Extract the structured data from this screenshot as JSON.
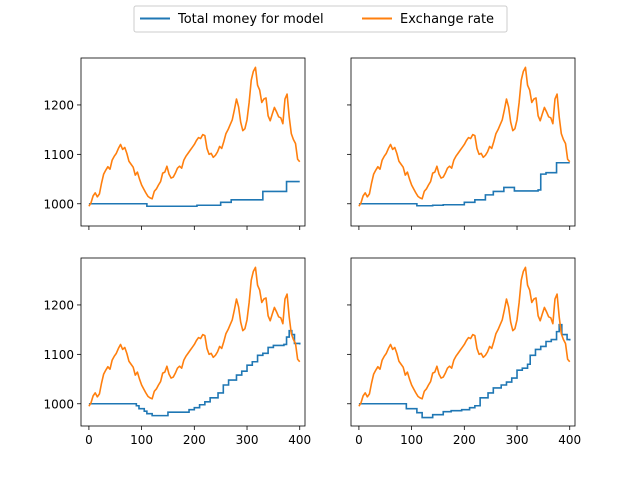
{
  "legend": {
    "placement": "top-center",
    "items": [
      {
        "label": "Total money for model",
        "color": "#1f77b4"
      },
      {
        "label": "Exchange rate",
        "color": "#ff7f0e"
      }
    ]
  },
  "colors": {
    "model": "#1f77b4",
    "rate": "#ff7f0e",
    "axis": "#000000",
    "background": "#ffffff"
  },
  "chart_data": {
    "type": "line",
    "layout": "2x2 grid, shared x and y axes",
    "xlim": [
      -15,
      410
    ],
    "ylim": [
      955,
      1295
    ],
    "x_ticks": [
      0,
      100,
      200,
      300,
      400
    ],
    "y_ticks": [
      1000,
      1100,
      1200
    ],
    "grid": false,
    "exchange_rate": {
      "name": "Exchange rate",
      "x": [
        0,
        4,
        8,
        12,
        16,
        20,
        24,
        28,
        32,
        36,
        40,
        44,
        48,
        52,
        56,
        60,
        64,
        68,
        72,
        76,
        80,
        84,
        88,
        92,
        96,
        100,
        104,
        108,
        112,
        116,
        120,
        124,
        128,
        132,
        136,
        140,
        144,
        148,
        152,
        156,
        160,
        164,
        168,
        172,
        176,
        180,
        184,
        188,
        192,
        196,
        200,
        204,
        208,
        212,
        216,
        220,
        224,
        228,
        232,
        236,
        240,
        244,
        248,
        252,
        256,
        260,
        264,
        268,
        272,
        276,
        280,
        284,
        288,
        292,
        296,
        300,
        304,
        308,
        312,
        316,
        320,
        324,
        328,
        332,
        336,
        340,
        344,
        348,
        352,
        356,
        360,
        364,
        368,
        372,
        376,
        380,
        384,
        388,
        392,
        396,
        400
      ],
      "y": [
        995,
        1002,
        1016,
        1022,
        1014,
        1020,
        1042,
        1060,
        1068,
        1075,
        1070,
        1088,
        1096,
        1102,
        1112,
        1120,
        1110,
        1114,
        1102,
        1086,
        1080,
        1074,
        1058,
        1064,
        1050,
        1038,
        1030,
        1022,
        1015,
        1012,
        1010,
        1025,
        1030,
        1038,
        1045,
        1062,
        1064,
        1076,
        1060,
        1052,
        1054,
        1062,
        1072,
        1076,
        1072,
        1088,
        1096,
        1102,
        1108,
        1114,
        1120,
        1128,
        1134,
        1132,
        1140,
        1138,
        1112,
        1100,
        1102,
        1094,
        1098,
        1105,
        1116,
        1112,
        1126,
        1142,
        1150,
        1160,
        1170,
        1190,
        1212,
        1196,
        1165,
        1148,
        1152,
        1170,
        1205,
        1250,
        1268,
        1276,
        1240,
        1230,
        1205,
        1212,
        1214,
        1178,
        1168,
        1182,
        1195,
        1186,
        1176,
        1174,
        1162,
        1212,
        1222,
        1176,
        1142,
        1130,
        1122,
        1090,
        1085
      ]
    },
    "panels": [
      {
        "position": "top-left",
        "series": [
          {
            "name": "Total money for model",
            "steps": [
              [
                0,
                1000
              ],
              [
                110,
                995
              ],
              [
                160,
                995
              ],
              [
                205,
                997
              ],
              [
                250,
                1003
              ],
              [
                270,
                1008
              ],
              [
                330,
                1025
              ],
              [
                375,
                1045
              ],
              [
                400,
                1045
              ]
            ]
          }
        ]
      },
      {
        "position": "top-right",
        "series": [
          {
            "name": "Total money for model",
            "steps": [
              [
                0,
                1000
              ],
              [
                110,
                996
              ],
              [
                140,
                997
              ],
              [
                160,
                998
              ],
              [
                200,
                1003
              ],
              [
                220,
                1008
              ],
              [
                240,
                1018
              ],
              [
                255,
                1025
              ],
              [
                275,
                1033
              ],
              [
                295,
                1026
              ],
              [
                340,
                1028
              ],
              [
                345,
                1060
              ],
              [
                355,
                1063
              ],
              [
                375,
                1083
              ],
              [
                400,
                1083
              ]
            ]
          }
        ]
      },
      {
        "position": "bottom-left",
        "series": [
          {
            "name": "Total money for model",
            "steps": [
              [
                0,
                1000
              ],
              [
                90,
                996
              ],
              [
                95,
                990
              ],
              [
                105,
                985
              ],
              [
                110,
                980
              ],
              [
                120,
                976
              ],
              [
                130,
                976
              ],
              [
                150,
                983
              ],
              [
                180,
                983
              ],
              [
                190,
                988
              ],
              [
                200,
                992
              ],
              [
                210,
                998
              ],
              [
                220,
                1004
              ],
              [
                230,
                1012
              ],
              [
                245,
                1022
              ],
              [
                255,
                1038
              ],
              [
                265,
                1048
              ],
              [
                280,
                1058
              ],
              [
                290,
                1066
              ],
              [
                300,
                1078
              ],
              [
                310,
                1085
              ],
              [
                320,
                1098
              ],
              [
                330,
                1102
              ],
              [
                340,
                1114
              ],
              [
                350,
                1118
              ],
              [
                370,
                1120
              ],
              [
                375,
                1135
              ],
              [
                380,
                1148
              ],
              [
                385,
                1140
              ],
              [
                390,
                1122
              ],
              [
                400,
                1120
              ]
            ]
          }
        ]
      },
      {
        "position": "bottom-right",
        "series": [
          {
            "name": "Total money for model",
            "steps": [
              [
                0,
                1000
              ],
              [
                85,
                1000
              ],
              [
                90,
                990
              ],
              [
                110,
                982
              ],
              [
                120,
                972
              ],
              [
                130,
                972
              ],
              [
                140,
                978
              ],
              [
                160,
                984
              ],
              [
                175,
                986
              ],
              [
                195,
                988
              ],
              [
                210,
                992
              ],
              [
                220,
                996
              ],
              [
                230,
                1012
              ],
              [
                245,
                1022
              ],
              [
                255,
                1032
              ],
              [
                270,
                1038
              ],
              [
                280,
                1044
              ],
              [
                290,
                1052
              ],
              [
                300,
                1068
              ],
              [
                310,
                1072
              ],
              [
                320,
                1080
              ],
              [
                325,
                1098
              ],
              [
                335,
                1110
              ],
              [
                345,
                1116
              ],
              [
                355,
                1126
              ],
              [
                365,
                1130
              ],
              [
                375,
                1146
              ],
              [
                380,
                1160
              ],
              [
                385,
                1140
              ],
              [
                395,
                1130
              ],
              [
                400,
                1128
              ]
            ]
          }
        ]
      }
    ]
  }
}
